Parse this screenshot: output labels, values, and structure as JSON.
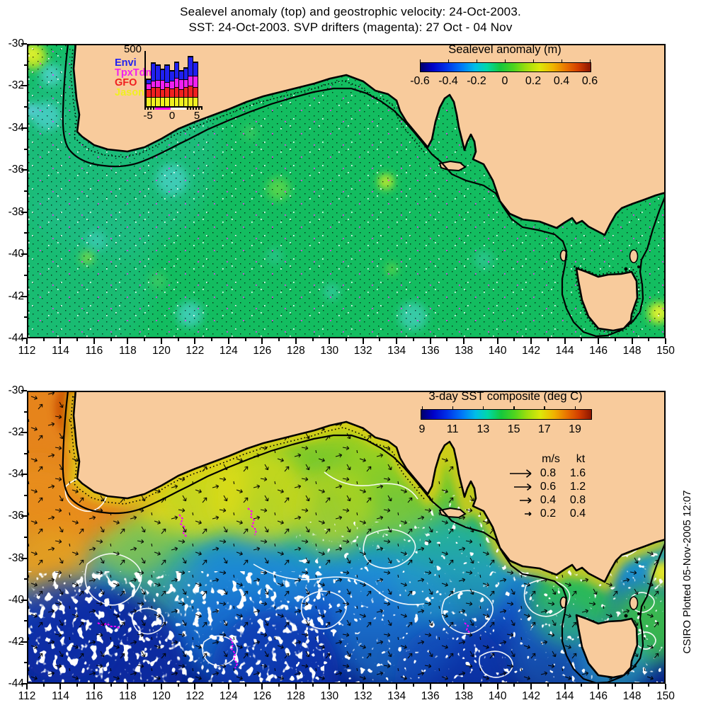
{
  "title": {
    "line1": "Sealevel anomaly (top) and geostrophic velocity: 24-Oct-2003.",
    "line2": "SST: 24-Oct-2003. SVP drifters (magenta): 27 Oct - 04 Nov"
  },
  "top_map": {
    "colorbar": {
      "title": "Sealevel anomaly (m)",
      "ticks": [
        "-0.6",
        "-0.4",
        "-0.2",
        "0",
        "0.2",
        "0.4",
        "0.6"
      ]
    },
    "lon_ticks": [
      "112",
      "114",
      "116",
      "118",
      "120",
      "122",
      "124",
      "126",
      "128",
      "130",
      "132",
      "134",
      "136",
      "138",
      "140",
      "142",
      "144",
      "146",
      "148",
      "150"
    ],
    "lat_ticks": [
      "-30",
      "-32",
      "-34",
      "-36",
      "-38",
      "-40",
      "-42",
      "-44"
    ],
    "histogram": {
      "ymax_label": "500",
      "xticks": [
        "-5",
        "0",
        "5"
      ],
      "series": [
        {
          "key": "envi",
          "label": "Envi",
          "color": "#2020F0"
        },
        {
          "key": "tpx",
          "label": "TpxTdm",
          "color": "#F020F0"
        },
        {
          "key": "gfo",
          "label": "GFO",
          "color": "#F02020"
        },
        {
          "key": "jason",
          "label": "Jason",
          "color": "#F0F020"
        }
      ],
      "bars": [
        {
          "jason": 80,
          "gfo": 65,
          "tpx": 50,
          "envi": 30
        },
        {
          "jason": 80,
          "gfo": 85,
          "tpx": 55,
          "envi": 160
        },
        {
          "jason": 80,
          "gfo": 85,
          "tpx": 65,
          "envi": 130
        },
        {
          "jason": 80,
          "gfo": 65,
          "tpx": 80,
          "envi": 95
        },
        {
          "jason": 80,
          "gfo": 85,
          "tpx": 45,
          "envi": 150
        },
        {
          "jason": 80,
          "gfo": 75,
          "tpx": 65,
          "envi": 90
        },
        {
          "jason": 80,
          "gfo": 90,
          "tpx": 75,
          "envi": 140
        },
        {
          "jason": 80,
          "gfo": 65,
          "tpx": 90,
          "envi": 75
        },
        {
          "jason": 80,
          "gfo": 90,
          "tpx": 65,
          "envi": 100
        },
        {
          "jason": 80,
          "gfo": 100,
          "tpx": 85,
          "envi": 175
        },
        {
          "jason": 80,
          "gfo": 90,
          "tpx": 100,
          "envi": 120
        }
      ]
    }
  },
  "bottom_map": {
    "colorbar": {
      "title": "3-day SST composite (deg C)",
      "ticks": [
        "9",
        "11",
        "13",
        "15",
        "17",
        "19"
      ]
    },
    "lon_ticks": [
      "112",
      "114",
      "116",
      "118",
      "120",
      "122",
      "124",
      "126",
      "128",
      "130",
      "132",
      "134",
      "136",
      "138",
      "140",
      "142",
      "144",
      "146",
      "148",
      "150"
    ],
    "lat_ticks": [
      "-30",
      "-32",
      "-34",
      "-36",
      "-38",
      "-40",
      "-42",
      "-44"
    ],
    "vector_legend": {
      "col1": "m/s",
      "col2": "kt",
      "rows": [
        [
          "0.8",
          "1.6"
        ],
        [
          "0.6",
          "1.2"
        ],
        [
          "0.4",
          "0.8"
        ],
        [
          "0.2",
          "0.4"
        ]
      ]
    }
  },
  "footer": {
    "credit": "CSIRO Plotted 05-Nov-2005 12:07"
  },
  "colors": {
    "land": "#F8CB9C",
    "ocean_green": "#13BD60",
    "drifter": "#FF00FF",
    "contour": "#000000",
    "sla_contour_white": "#FFFFFF"
  },
  "chart_data": [
    {
      "type": "heatmap",
      "panel": "top",
      "title": "Sealevel anomaly (m)",
      "xlim": [
        112,
        150
      ],
      "ylim": [
        -44,
        -30
      ],
      "x_ticks": [
        112,
        114,
        116,
        118,
        120,
        122,
        124,
        126,
        128,
        130,
        132,
        134,
        136,
        138,
        140,
        142,
        144,
        146,
        148,
        150
      ],
      "y_ticks": [
        -30,
        -32,
        -34,
        -36,
        -38,
        -40,
        -42,
        -44
      ],
      "colorbar": {
        "label": "Sealevel anomaly (m)",
        "ticks": [
          -0.6,
          -0.4,
          -0.2,
          0,
          0.2,
          0.4,
          0.6
        ],
        "palette": "jet"
      },
      "legend_position": "top-right",
      "grid": false,
      "features": [
        "near-zero (green) anomaly over most of the domain",
        "weak negative (cyan) eddies near 113E-31S, 120E-38S, 121E-44S, 130E-42S",
        "positive (yellow) eddies near 112.5E-30.5S, 133E-38.5S, 149.5E-42.5S",
        "black shelf-edge contour along the coast and around Tasmania",
        "grid of velocity observation dots (black/white/magenta)"
      ]
    },
    {
      "type": "bar",
      "panel": "top-inset-histogram",
      "stacked": true,
      "categories": [
        -5,
        -4,
        -3,
        -2,
        -1,
        0,
        1,
        2,
        3,
        4,
        5
      ],
      "series": [
        {
          "name": "Jason",
          "color": "#F0F020",
          "values": [
            80,
            80,
            80,
            80,
            80,
            80,
            80,
            80,
            80,
            80,
            80
          ]
        },
        {
          "name": "GFO",
          "color": "#F02020",
          "values": [
            65,
            85,
            85,
            65,
            85,
            75,
            90,
            65,
            90,
            100,
            90
          ]
        },
        {
          "name": "TpxTdm",
          "color": "#F020F0",
          "values": [
            50,
            55,
            65,
            80,
            45,
            65,
            75,
            90,
            65,
            85,
            100
          ]
        },
        {
          "name": "Envi",
          "color": "#2020F0",
          "values": [
            30,
            160,
            130,
            95,
            150,
            90,
            140,
            75,
            100,
            175,
            120
          ]
        }
      ],
      "xlim": [
        -5,
        5
      ],
      "ylim": [
        0,
        500
      ],
      "x_tick_labels": [
        -5,
        0,
        5
      ],
      "y_tick_labels": [
        500
      ],
      "legend_position": "left"
    },
    {
      "type": "heatmap",
      "panel": "bottom",
      "title": "3-day SST composite (deg C)",
      "xlim": [
        112,
        150
      ],
      "ylim": [
        -44,
        -30
      ],
      "x_ticks": [
        112,
        114,
        116,
        118,
        120,
        122,
        124,
        126,
        128,
        130,
        132,
        134,
        136,
        138,
        140,
        142,
        144,
        146,
        148,
        150
      ],
      "y_ticks": [
        -30,
        -32,
        -34,
        -36,
        -38,
        -40,
        -42,
        -44
      ],
      "colorbar": {
        "label": "3-day SST composite (deg C)",
        "ticks": [
          9,
          11,
          13,
          15,
          17,
          19
        ],
        "palette": "jet"
      },
      "vector_scale": {
        "units": [
          "m/s",
          "kt"
        ],
        "rows": [
          [
            0.8,
            1.6
          ],
          [
            0.6,
            1.2
          ],
          [
            0.4,
            0.8
          ],
          [
            0.2,
            0.4
          ]
        ]
      },
      "features": [
        "warm (orange ~18-19C) Leeuwin Current water off Western Australia",
        "yellow (~16-17C) band along the Great Australian Bight shelf",
        "green (~14C) mid-Bight and Bass Strait water",
        "cold blue (~9-11C) Southern Ocean water south of 40S",
        "white cloud gaps in SST, mostly south-west",
        "white sealevel-anomaly contours, black current vectors, magenta SVP drifter tracks"
      ]
    }
  ]
}
